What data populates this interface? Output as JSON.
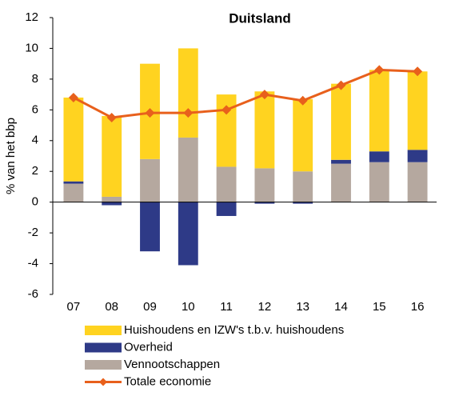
{
  "chart_data": {
    "type": "bar",
    "stacked": true,
    "title": "Duitsland",
    "y_label": "% van het bbp",
    "categories": [
      "07",
      "08",
      "09",
      "10",
      "11",
      "12",
      "13",
      "14",
      "15",
      "16"
    ],
    "series": [
      {
        "name": "Huishoudens en IZW's t.b.v. huishoudens",
        "color": "#ffd320",
        "values": [
          5.45,
          5.25,
          6.2,
          5.8,
          4.7,
          5.0,
          4.7,
          4.95,
          5.3,
          5.1
        ]
      },
      {
        "name": "Overheid",
        "color": "#2e3a87",
        "values": [
          0.15,
          -0.2,
          -3.2,
          -4.1,
          -0.9,
          -0.1,
          -0.1,
          0.25,
          0.7,
          0.8
        ]
      },
      {
        "name": "Vennootschappen",
        "color": "#b5a89f",
        "values": [
          1.2,
          0.35,
          2.8,
          4.2,
          2.3,
          2.2,
          2.0,
          2.5,
          2.6,
          2.6
        ]
      },
      {
        "name": "Totale economie",
        "color": "#e8601c",
        "type": "line",
        "values": [
          6.8,
          5.5,
          5.8,
          5.8,
          6.0,
          7.0,
          6.6,
          7.6,
          8.6,
          8.5
        ]
      }
    ],
    "ylim": [
      -6,
      12
    ],
    "yticks": [
      -6,
      -4,
      -2,
      0,
      2,
      4,
      6,
      8,
      10,
      12
    ],
    "grid": false
  }
}
